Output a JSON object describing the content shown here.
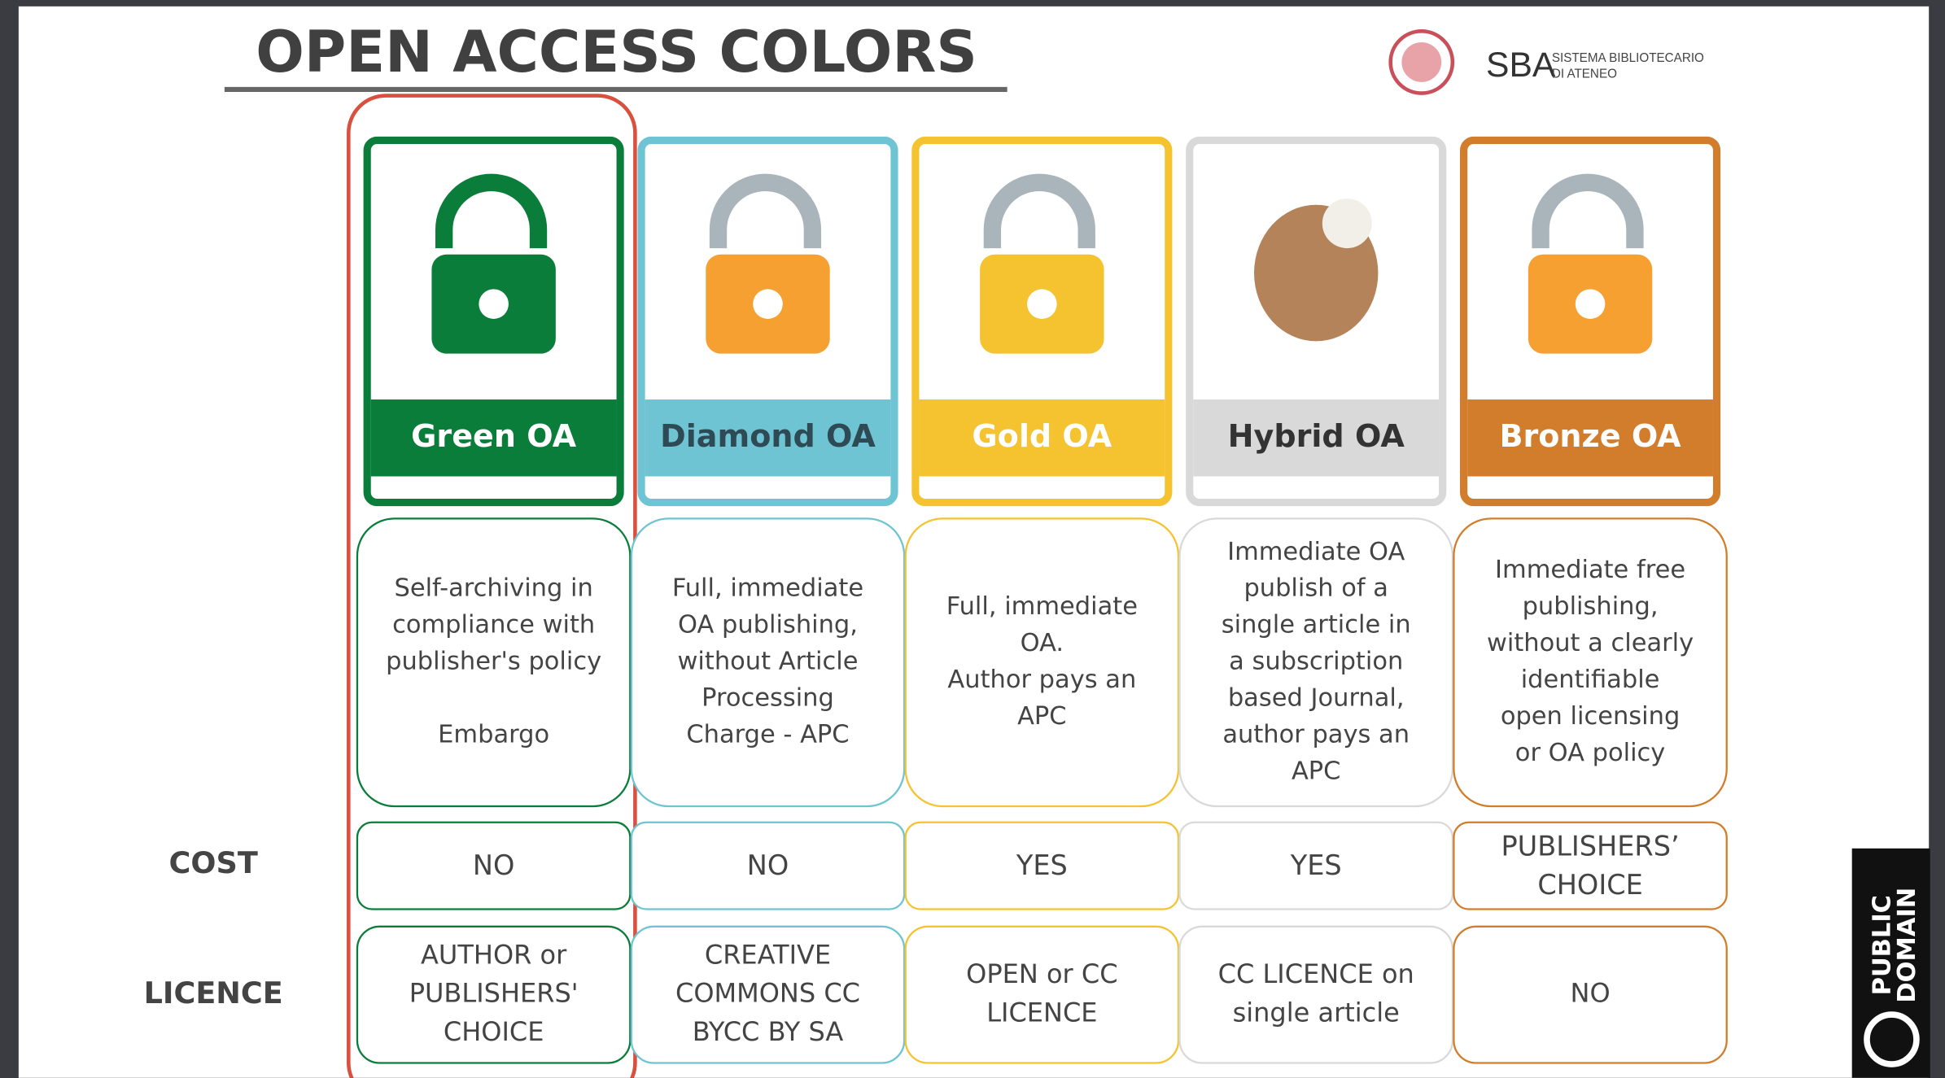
{
  "header": {
    "title": "OPEN ACCESS COLORS",
    "logo": {
      "abbr": "SBA",
      "line1": "SISTEMA BIBLIOTECARIO",
      "line2": "DI ATENEO"
    }
  },
  "row_labels": {
    "cost": "COST",
    "licence": "LICENCE"
  },
  "columns": [
    {
      "name": "Green OA",
      "color": "#0b7d3a",
      "text_color": "#ffffff",
      "description": [
        [
          "Self-archiving in",
          "compliance with",
          "publisher's policy"
        ],
        [
          "Embargo"
        ]
      ],
      "cost": [
        "NO"
      ],
      "licence": [
        "AUTHOR or",
        "PUBLISHERS'",
        "CHOICE"
      ]
    },
    {
      "name": "Diamond OA",
      "color": "#6fc4d4",
      "text_color": "#2e4a55",
      "description": [
        [
          "Full, immediate",
          "OA publishing,",
          "without Article",
          "Processing",
          "Charge - APC"
        ]
      ],
      "cost": [
        "NO"
      ],
      "licence": [
        "CREATIVE",
        "COMMONS CC",
        "BYCC BY SA"
      ]
    },
    {
      "name": "Gold OA",
      "color": "#f5c230",
      "text_color": "#ffffff",
      "description": [
        [
          "Full, immediate",
          "OA.",
          "Author pays an",
          "APC"
        ]
      ],
      "cost": [
        "YES"
      ],
      "licence": [
        "OPEN or CC",
        "LICENCE"
      ]
    },
    {
      "name": "Hybrid OA",
      "color": "#d9d9d9",
      "text_color": "#333333",
      "description": [
        [
          "Immediate OA",
          "publish of a",
          "single article in",
          "a subscription",
          "based Journal,",
          "author pays an",
          "APC"
        ]
      ],
      "cost": [
        "YES"
      ],
      "licence": [
        "CC LICENCE on",
        "single article"
      ]
    },
    {
      "name": "Bronze OA",
      "color": "#d17d2b",
      "text_color": "#ffffff",
      "description": [
        [
          "Immediate free",
          "publishing,",
          "without a clearly",
          "identifiable",
          "open licensing",
          "or OA policy"
        ]
      ],
      "cost": [
        "PUBLISHERS’",
        "CHOICE"
      ],
      "licence": [
        "NO"
      ]
    }
  ],
  "badge": {
    "line1": "PUBLIC",
    "line2": "DOMAIN"
  }
}
